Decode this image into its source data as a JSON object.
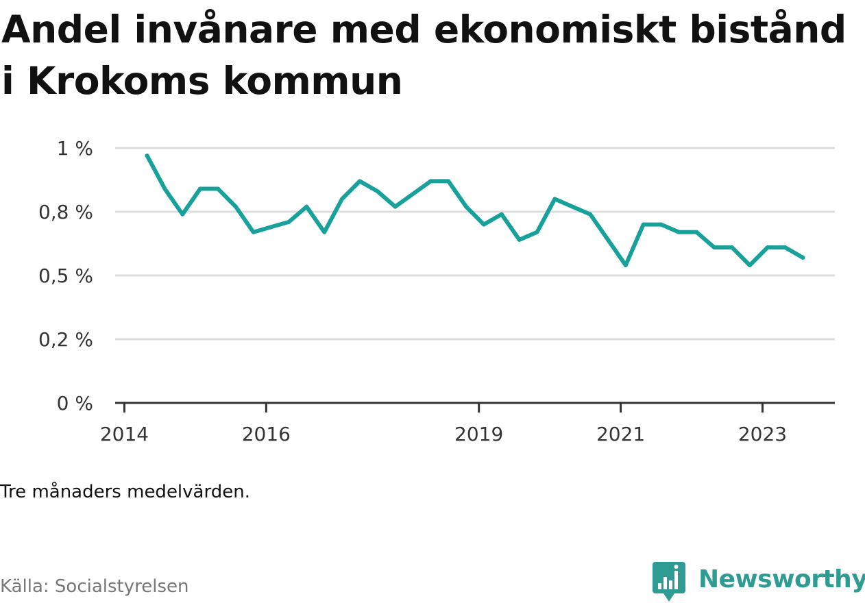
{
  "title": "Andel invånare med ekonomiskt bistånd i Krokoms kommun",
  "note": "Tre månaders medelvärden.",
  "source": "Källa: Socialstyrelsen",
  "brand": {
    "name": "Newsworthy",
    "icon": "newsworthy-logo-icon",
    "color": "#2e9c92"
  },
  "colors": {
    "line": "#18a19a",
    "grid": "#dddddd",
    "axis": "#333333"
  },
  "chart_data": {
    "type": "line",
    "title": "Andel invånare med ekonomiskt bistånd i Krokoms kommun",
    "xlabel": "",
    "ylabel": "",
    "ylim": [
      0,
      1
    ],
    "yticks": [
      {
        "value": 0,
        "label": "0 %"
      },
      {
        "value": 0.25,
        "label": "0,2 %"
      },
      {
        "value": 0.5,
        "label": "0,5 %"
      },
      {
        "value": 0.75,
        "label": "0,8 %"
      },
      {
        "value": 1.0,
        "label": "1 %"
      }
    ],
    "xlim": [
      2013.87,
      2024.02
    ],
    "xticks": [
      {
        "value": 2014,
        "label": "2014"
      },
      {
        "value": 2016,
        "label": "2016"
      },
      {
        "value": 2019,
        "label": "2019"
      },
      {
        "value": 2021,
        "label": "2021"
      },
      {
        "value": 2023,
        "label": "2023"
      }
    ],
    "grid": true,
    "series": [
      {
        "x": [
          2014.32,
          2014.57,
          2014.82,
          2015.07,
          2015.32,
          2015.57,
          2015.82,
          2016.07,
          2016.32,
          2016.57,
          2016.82,
          2017.07,
          2017.32,
          2017.57,
          2017.82,
          2018.07,
          2018.32,
          2018.57,
          2018.82,
          2019.07,
          2019.32,
          2019.57,
          2019.82,
          2020.07,
          2020.32,
          2020.57,
          2020.82,
          2021.07,
          2021.32,
          2021.57,
          2021.82,
          2022.07,
          2022.32,
          2022.57,
          2022.82,
          2023.07,
          2023.32,
          2023.57
        ],
        "y": [
          0.97,
          0.84,
          0.74,
          0.84,
          0.84,
          0.77,
          0.67,
          0.69,
          0.71,
          0.77,
          0.67,
          0.8,
          0.87,
          0.83,
          0.77,
          0.82,
          0.87,
          0.87,
          0.77,
          0.7,
          0.74,
          0.64,
          0.67,
          0.8,
          0.77,
          0.74,
          0.64,
          0.54,
          0.7,
          0.7,
          0.67,
          0.67,
          0.61,
          0.61,
          0.54,
          0.61,
          0.61,
          0.57
        ]
      }
    ]
  }
}
